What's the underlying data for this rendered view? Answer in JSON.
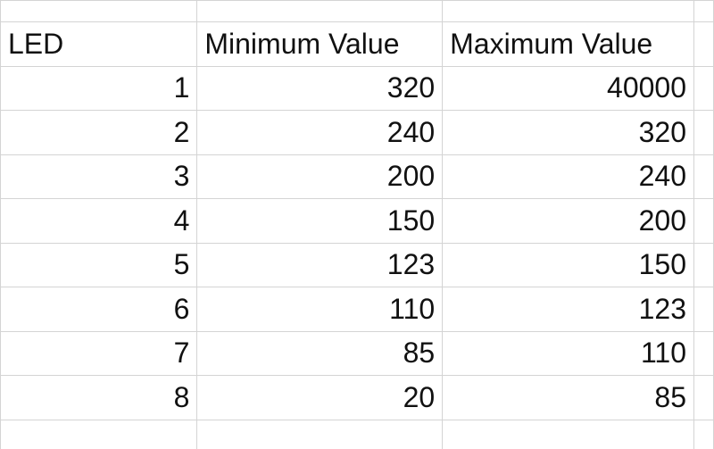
{
  "table": {
    "headers": [
      "LED",
      "Minimum Value",
      "Maximum Value"
    ],
    "rows": [
      {
        "led": "1",
        "min": "320",
        "max": "40000"
      },
      {
        "led": "2",
        "min": "240",
        "max": "320"
      },
      {
        "led": "3",
        "min": "200",
        "max": "240"
      },
      {
        "led": "4",
        "min": "150",
        "max": "200"
      },
      {
        "led": "5",
        "min": "123",
        "max": "150"
      },
      {
        "led": "6",
        "min": "110",
        "max": "123"
      },
      {
        "led": "7",
        "min": "85",
        "max": "110"
      },
      {
        "led": "8",
        "min": "20",
        "max": "85"
      }
    ]
  }
}
